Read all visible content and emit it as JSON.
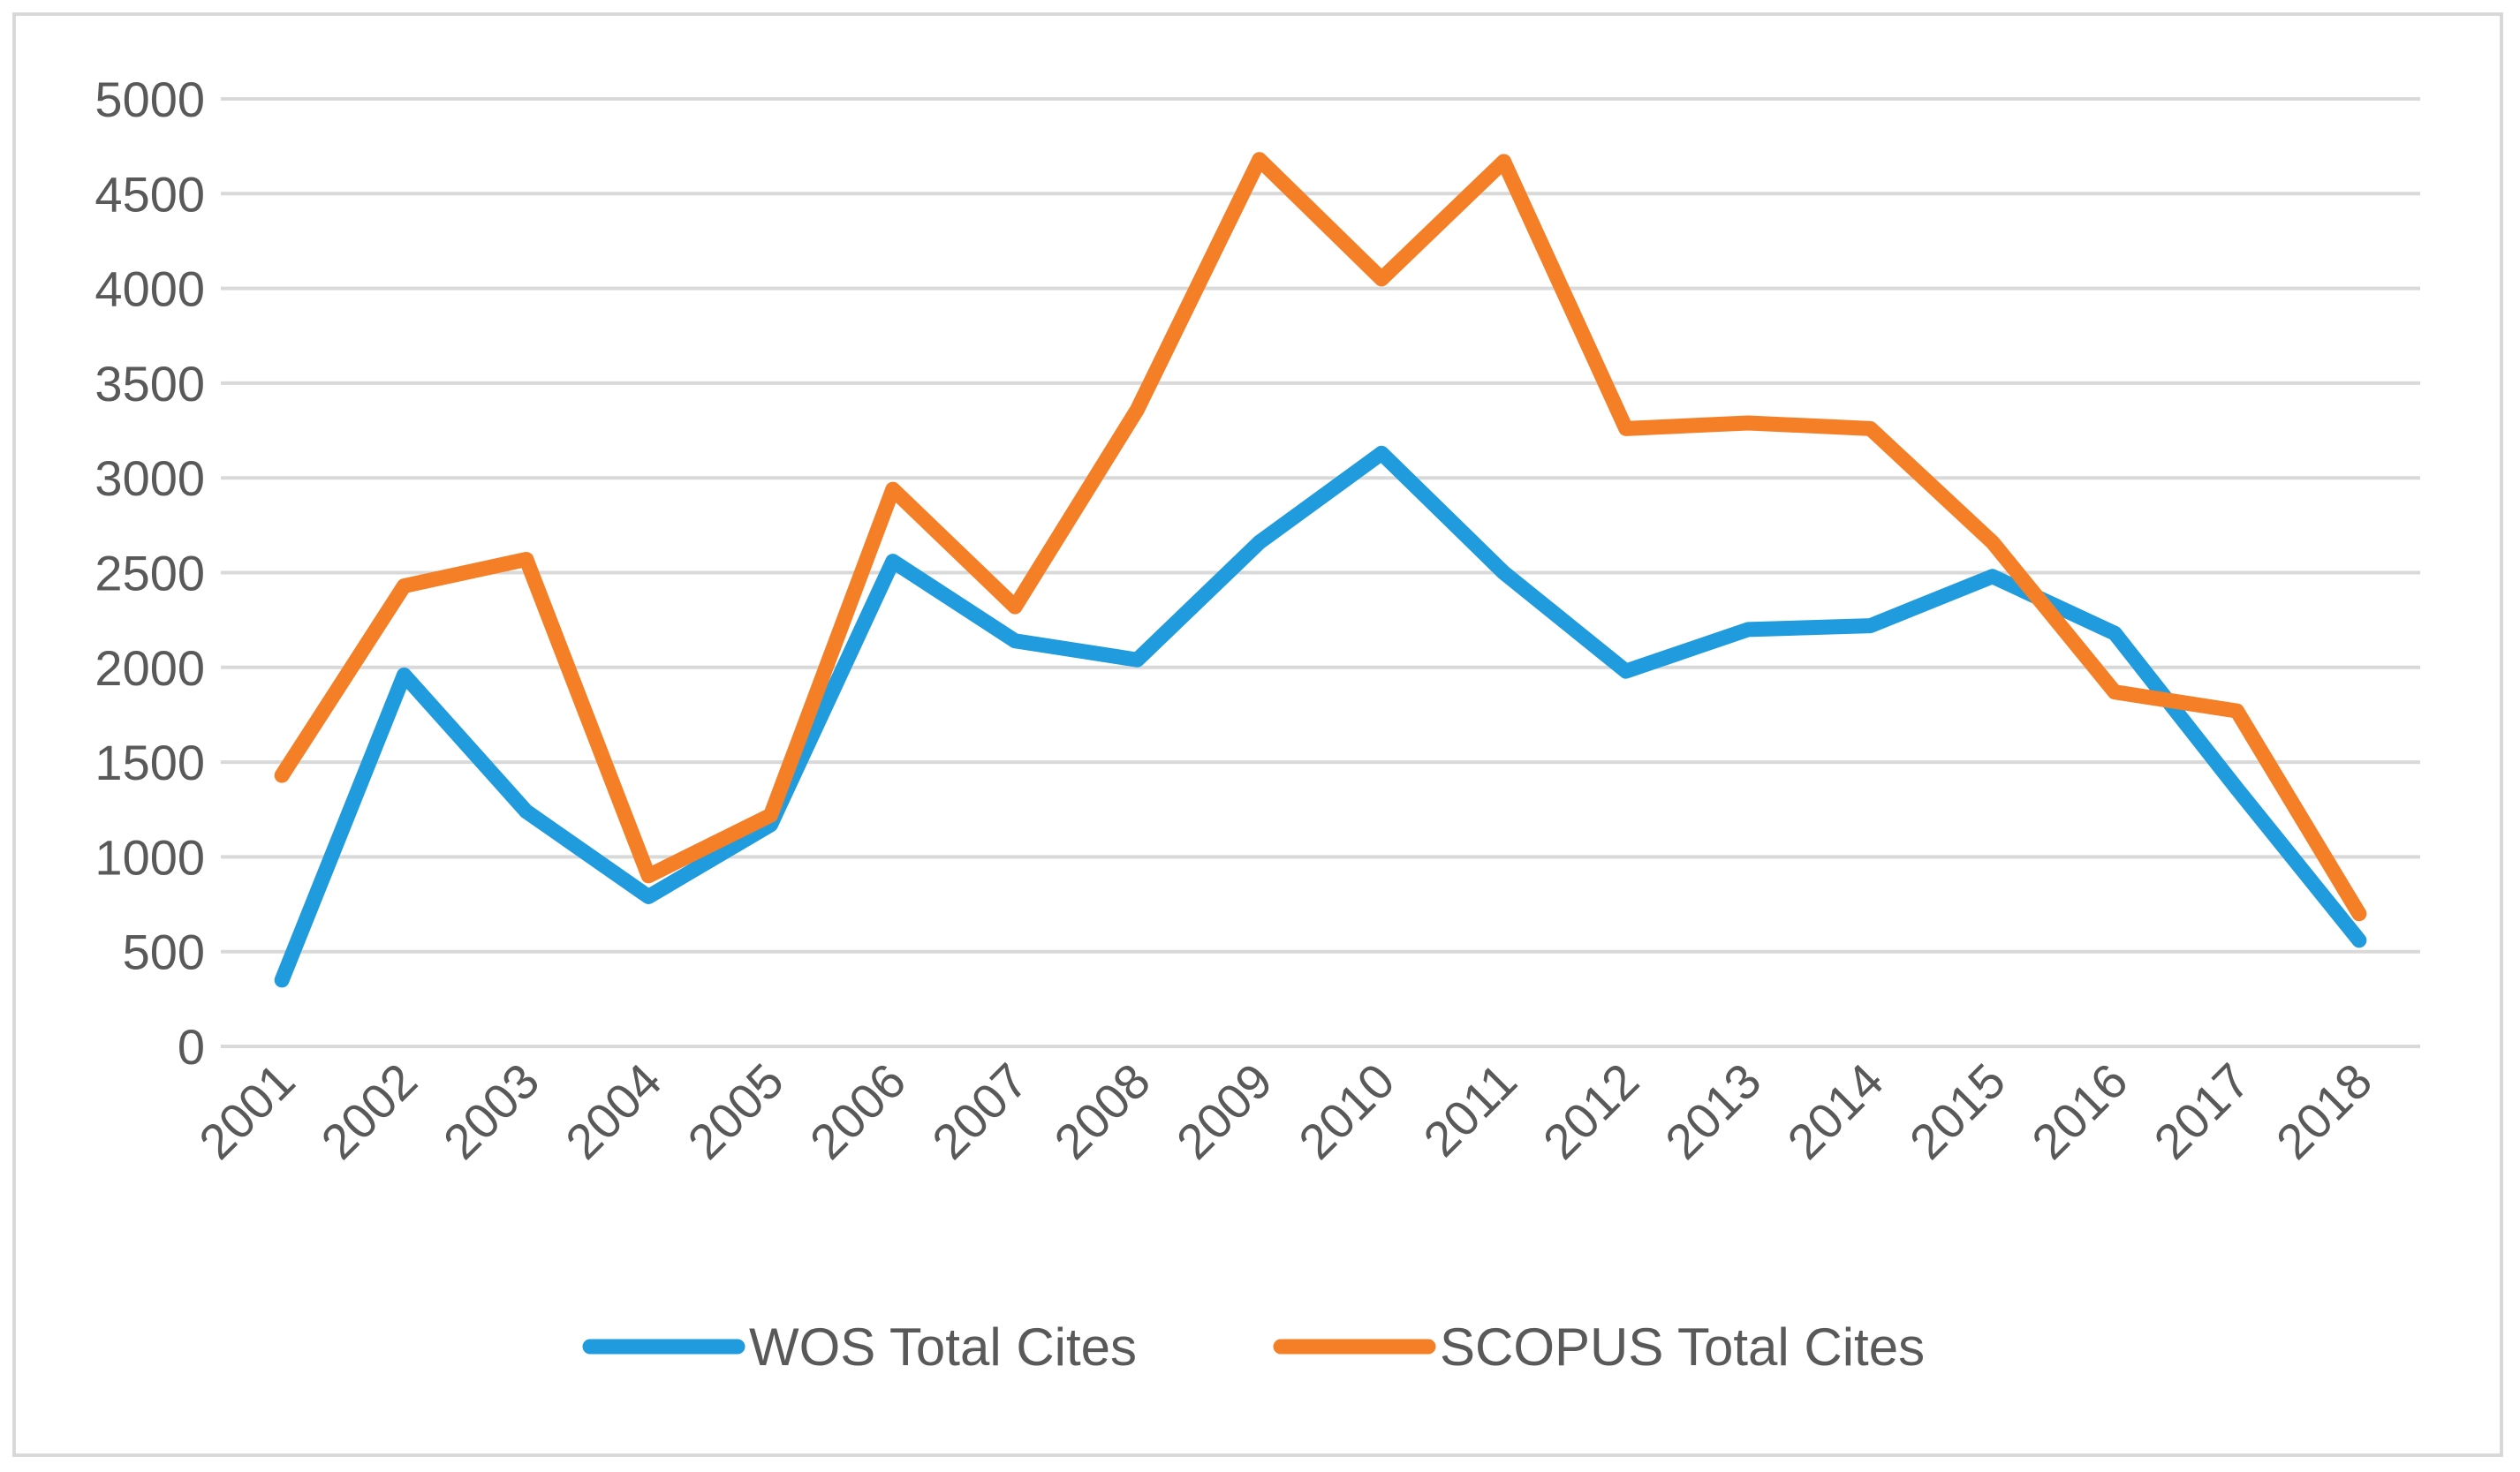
{
  "chart_data": {
    "type": "line",
    "title": "",
    "xlabel": "",
    "ylabel": "",
    "categories": [
      "2001",
      "2002",
      "2003",
      "2004",
      "2005",
      "2006",
      "2007",
      "2008",
      "2009",
      "2010",
      "2011",
      "2012",
      "2013",
      "2014",
      "2015",
      "2016",
      "2017",
      "2018"
    ],
    "yticks": [
      0,
      500,
      1000,
      1500,
      2000,
      2500,
      3000,
      3500,
      4000,
      4500,
      5000
    ],
    "ylim": [
      0,
      5000
    ],
    "grid": true,
    "legend_position": "bottom",
    "series": [
      {
        "name": "WOS Total Cites",
        "color": "#1f9bde",
        "values": [
          350,
          1960,
          1240,
          790,
          1170,
          2560,
          2140,
          2040,
          2660,
          3130,
          2500,
          1980,
          2200,
          2220,
          2480,
          2180,
          1360,
          560
        ]
      },
      {
        "name": "SCOPUS Total Cites",
        "color": "#f57f26",
        "values": [
          1430,
          2430,
          2570,
          900,
          1220,
          2940,
          2320,
          3360,
          4680,
          4050,
          4670,
          3260,
          3290,
          3260,
          2660,
          1870,
          1770,
          700
        ]
      }
    ]
  }
}
